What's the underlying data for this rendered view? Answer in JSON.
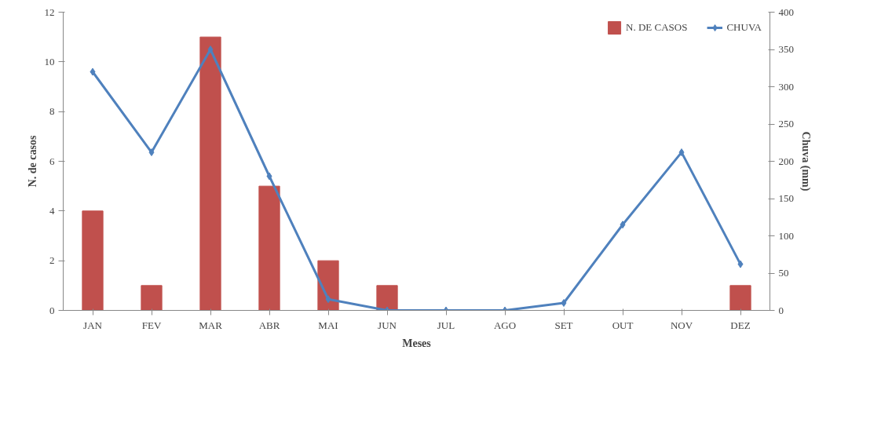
{
  "chart_data": {
    "type": "bar",
    "xlabel": "Meses",
    "ylabel": "N. de casos",
    "y2label": "Chuva (mm)",
    "categories": [
      "JAN",
      "FEV",
      "MAR",
      "ABR",
      "MAI",
      "JUN",
      "JUL",
      "AGO",
      "SET",
      "OUT",
      "NOV",
      "DEZ"
    ],
    "series": [
      {
        "name": "N. DE CASOS",
        "color": "#c0504d",
        "values": [
          4,
          1,
          11,
          5,
          2,
          1,
          0,
          0,
          0,
          0,
          0,
          1
        ]
      },
      {
        "name": "CHUVA",
        "type": "line",
        "axis": "y2",
        "color": "#4f81bd",
        "marker": "diamond",
        "values": [
          320,
          212,
          350,
          180,
          15,
          0,
          0,
          0,
          10,
          115,
          212,
          62
        ]
      }
    ],
    "ylim": [
      0,
      12
    ],
    "yticks": [
      0,
      2,
      4,
      6,
      8,
      10,
      12
    ],
    "y2lim": [
      0,
      400
    ],
    "y2ticks": [
      0,
      50,
      100,
      150,
      200,
      250,
      300,
      350,
      400
    ],
    "grid": false,
    "legend": "top right"
  }
}
